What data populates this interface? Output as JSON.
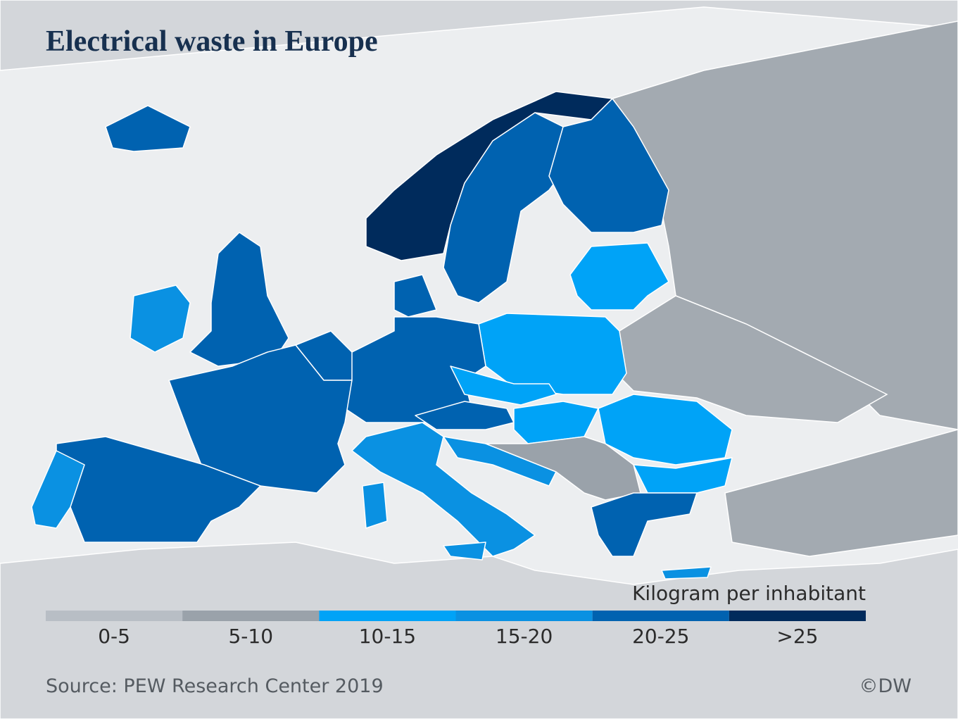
{
  "title": "Electrical  waste in Europe",
  "legend": {
    "title": "Kilogram per inhabitant",
    "items": [
      {
        "label": "0-5",
        "color": "#b8bec5"
      },
      {
        "label": "5-10",
        "color": "#9aa2aa"
      },
      {
        "label": "10-15",
        "color": "#00a3f7"
      },
      {
        "label": "15-20",
        "color": "#0a91e2"
      },
      {
        "label": "20-25",
        "color": "#0062b0"
      },
      {
        "label": ">25",
        "color": "#002b5c"
      }
    ]
  },
  "source": "Source: PEW Research Center 2019",
  "copyright": "©DW"
}
